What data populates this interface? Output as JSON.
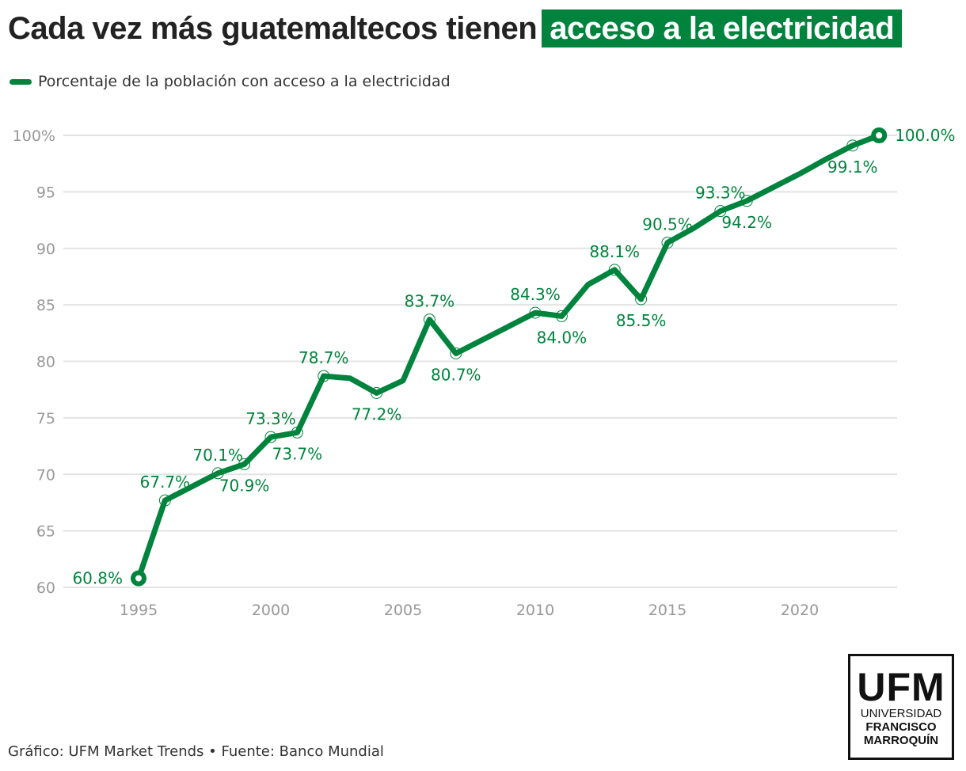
{
  "title": {
    "prefix": "Cada vez más guatemaltecos tienen",
    "highlight": "acceso a la electricidad"
  },
  "colors": {
    "accent": "#00843d",
    "grid": "#e3e3e3",
    "tick": "#999999"
  },
  "footer": "Gráfico: UFM Market Trends • Fuente: Banco Mundial",
  "logo": {
    "big": "UFM",
    "line1": "UNIVERSIDAD",
    "line2": "FRANCISCO",
    "line3": "MARROQUÍN"
  },
  "chart_data": {
    "type": "line",
    "title": "Cada vez más guatemaltecos tienen acceso a la electricidad",
    "legend": [
      "Porcentaje de la población con acceso a la electricidad"
    ],
    "legend_placement": "top-left",
    "xlabel": "",
    "ylabel": "",
    "xlim": [
      1993,
      2024
    ],
    "ylim": [
      60,
      100
    ],
    "xticks": [
      1995,
      2000,
      2005,
      2010,
      2015,
      2020
    ],
    "yticks": [
      60,
      65,
      70,
      75,
      80,
      85,
      90,
      95,
      100
    ],
    "ytick_labels": [
      "60",
      "65",
      "70",
      "75",
      "80",
      "85",
      "90",
      "95",
      "100%"
    ],
    "grid": true,
    "series": [
      {
        "name": "Porcentaje de la población con acceso a la electricidad",
        "x": [
          1995,
          1996,
          1997,
          1998,
          1999,
          2000,
          2001,
          2002,
          2003,
          2004,
          2005,
          2006,
          2007,
          2008,
          2009,
          2010,
          2011,
          2012,
          2013,
          2014,
          2015,
          2016,
          2017,
          2018,
          2019,
          2020,
          2021,
          2022,
          2023
        ],
        "y": [
          60.8,
          67.7,
          68.9,
          70.1,
          70.9,
          73.3,
          73.7,
          78.7,
          78.5,
          77.2,
          78.3,
          83.7,
          80.7,
          81.9,
          83.1,
          84.3,
          84.0,
          86.8,
          88.1,
          85.5,
          90.5,
          91.8,
          93.3,
          94.2,
          95.4,
          96.6,
          97.9,
          99.1,
          100.0
        ]
      }
    ],
    "annotations": [
      {
        "x": 1995,
        "label": "60.8%",
        "pos": "left"
      },
      {
        "x": 1996,
        "label": "67.7%",
        "pos": "above"
      },
      {
        "x": 1998,
        "label": "70.1%",
        "pos": "above"
      },
      {
        "x": 1999,
        "label": "70.9%",
        "pos": "below"
      },
      {
        "x": 2000,
        "label": "73.3%",
        "pos": "above"
      },
      {
        "x": 2001,
        "label": "73.7%",
        "pos": "below"
      },
      {
        "x": 2002,
        "label": "78.7%",
        "pos": "above"
      },
      {
        "x": 2004,
        "label": "77.2%",
        "pos": "below"
      },
      {
        "x": 2006,
        "label": "83.7%",
        "pos": "above"
      },
      {
        "x": 2007,
        "label": "80.7%",
        "pos": "below"
      },
      {
        "x": 2010,
        "label": "84.3%",
        "pos": "above"
      },
      {
        "x": 2011,
        "label": "84.0%",
        "pos": "below"
      },
      {
        "x": 2013,
        "label": "88.1%",
        "pos": "above"
      },
      {
        "x": 2014,
        "label": "85.5%",
        "pos": "below"
      },
      {
        "x": 2015,
        "label": "90.5%",
        "pos": "above"
      },
      {
        "x": 2017,
        "label": "93.3%",
        "pos": "above"
      },
      {
        "x": 2018,
        "label": "94.2%",
        "pos": "below"
      },
      {
        "x": 2022,
        "label": "99.1%",
        "pos": "below"
      },
      {
        "x": 2023,
        "label": "100.0%",
        "pos": "right"
      }
    ]
  }
}
